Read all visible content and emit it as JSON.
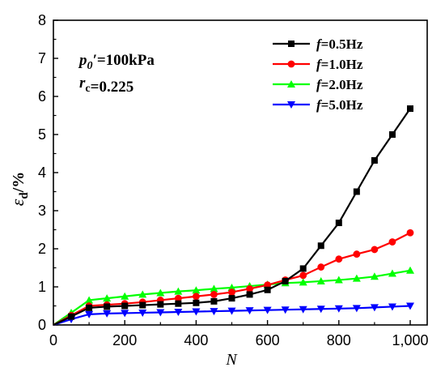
{
  "chart_data": {
    "type": "line",
    "title": "",
    "xlabel": "N",
    "ylabel_main": "ε",
    "ylabel_sub": "d",
    "ylabel_unit": "/%",
    "xlim": [
      0,
      1000
    ],
    "ylim": [
      0,
      8
    ],
    "x_ticks": [
      0,
      200,
      400,
      600,
      800,
      1000
    ],
    "x_tick_labels": [
      "0",
      "200",
      "400",
      "600",
      "800",
      "1,000"
    ],
    "y_ticks": [
      0,
      1,
      2,
      3,
      4,
      5,
      6,
      7,
      8
    ],
    "y_tick_labels": [
      "0",
      "1",
      "2",
      "3",
      "4",
      "5",
      "6",
      "7",
      "8"
    ],
    "grid": false,
    "legend_position": "top-right",
    "annotations": [
      {
        "var": "p",
        "sub": "0",
        "mark": "′",
        "text": "=100kPa"
      },
      {
        "var": "r",
        "sub": "c",
        "mark": "",
        "text": "=0.225"
      }
    ],
    "series": [
      {
        "name_var": "f",
        "name_text": "=0.5Hz",
        "color": "#000000",
        "marker": "square",
        "x": [
          0,
          50,
          100,
          150,
          200,
          250,
          300,
          350,
          400,
          450,
          500,
          550,
          600,
          650,
          700,
          750,
          800,
          850,
          900,
          950,
          1000
        ],
        "y": [
          0,
          0.22,
          0.45,
          0.48,
          0.5,
          0.52,
          0.54,
          0.56,
          0.58,
          0.62,
          0.7,
          0.8,
          0.92,
          1.15,
          1.48,
          2.08,
          2.68,
          3.5,
          4.32,
          5.0,
          5.68
        ]
      },
      {
        "name_var": "f",
        "name_text": "=1.0Hz",
        "color": "#ff0000",
        "marker": "circle",
        "x": [
          0,
          50,
          100,
          150,
          200,
          250,
          300,
          350,
          400,
          450,
          500,
          550,
          600,
          650,
          700,
          750,
          800,
          850,
          900,
          950,
          1000
        ],
        "y": [
          0,
          0.25,
          0.5,
          0.53,
          0.56,
          0.6,
          0.65,
          0.7,
          0.75,
          0.8,
          0.86,
          0.95,
          1.05,
          1.18,
          1.3,
          1.52,
          1.73,
          1.86,
          1.98,
          2.18,
          2.42
        ]
      },
      {
        "name_var": "f",
        "name_text": "=2.0Hz",
        "color": "#00ff00",
        "marker": "triangle-up",
        "x": [
          0,
          50,
          100,
          150,
          200,
          250,
          300,
          350,
          400,
          450,
          500,
          550,
          600,
          650,
          700,
          750,
          800,
          850,
          900,
          950,
          1000
        ],
        "y": [
          0,
          0.32,
          0.65,
          0.7,
          0.75,
          0.8,
          0.84,
          0.88,
          0.91,
          0.95,
          0.98,
          1.02,
          1.06,
          1.1,
          1.12,
          1.15,
          1.18,
          1.22,
          1.27,
          1.35,
          1.43
        ]
      },
      {
        "name_var": "f",
        "name_text": "=5.0Hz",
        "color": "#0000ff",
        "marker": "triangle-down",
        "x": [
          0,
          50,
          100,
          150,
          200,
          250,
          300,
          350,
          400,
          450,
          500,
          550,
          600,
          650,
          700,
          750,
          800,
          850,
          900,
          950,
          1000
        ],
        "y": [
          0,
          0.15,
          0.28,
          0.3,
          0.31,
          0.32,
          0.33,
          0.34,
          0.35,
          0.36,
          0.37,
          0.38,
          0.39,
          0.4,
          0.41,
          0.42,
          0.43,
          0.44,
          0.46,
          0.48,
          0.5
        ]
      }
    ]
  }
}
